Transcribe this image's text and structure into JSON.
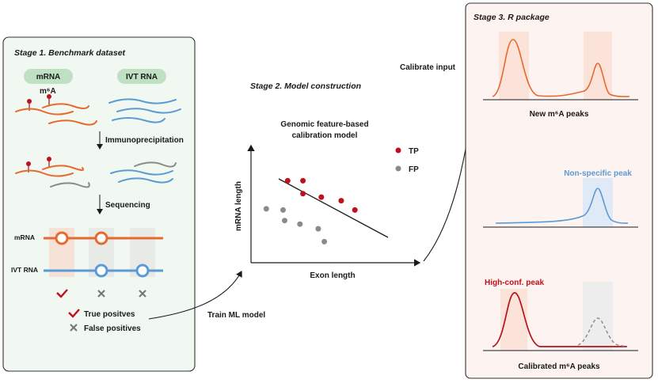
{
  "stage1": {
    "title": "Stage 1. Benchmark dataset",
    "pill_mrna": "mRNA",
    "pill_ivt": "IVT RNA",
    "m6a_label": "m⁶A",
    "step1": "Immunoprecipitation",
    "step2": "Sequencing",
    "row_mrna": "mRNA",
    "row_ivt": "IVT RNA",
    "legend_true": "True positves",
    "legend_false": "False positives"
  },
  "stage2": {
    "title": "Stage 2. Model construction",
    "model_title_1": "Genomic feature-based",
    "model_title_2": "calibration model",
    "ylabel": "mRNA length",
    "xlabel": "Exon length",
    "legend_tp": "TP",
    "legend_fp": "FP"
  },
  "arrows": {
    "train": "Train ML model",
    "calibrate": "Calibrate input"
  },
  "stage3": {
    "title": "Stage 3. R package",
    "new_peaks": "New m⁶A peaks",
    "nonspecific": "Non-specific peak",
    "highconf": "High-conf. peak",
    "calibrated": "Calibrated m⁶A peaks"
  },
  "colors": {
    "orange": "#e8692e",
    "blue": "#5b9bd5",
    "gray": "#8a8a8a",
    "red": "#c0101e",
    "panel_green": "#f1f7f1",
    "panel_pink": "#fdf3f1",
    "pill_green": "#bfe0c2"
  },
  "chart_data": {
    "type": "scatter",
    "xlabel": "Exon length",
    "ylabel": "mRNA length",
    "series": [
      {
        "name": "TP",
        "points": [
          [
            2.4,
            7.0
          ],
          [
            3.4,
            7.0
          ],
          [
            3.4,
            5.9
          ],
          [
            4.6,
            5.6
          ],
          [
            5.9,
            5.3
          ],
          [
            6.8,
            4.5
          ]
        ]
      },
      {
        "name": "FP",
        "points": [
          [
            1.0,
            4.6
          ],
          [
            2.1,
            4.5
          ],
          [
            2.2,
            3.6
          ],
          [
            3.2,
            3.3
          ],
          [
            4.4,
            2.9
          ],
          [
            4.8,
            1.8
          ]
        ]
      }
    ],
    "xlim": [
      0,
      10
    ],
    "ylim": [
      0,
      10
    ]
  }
}
